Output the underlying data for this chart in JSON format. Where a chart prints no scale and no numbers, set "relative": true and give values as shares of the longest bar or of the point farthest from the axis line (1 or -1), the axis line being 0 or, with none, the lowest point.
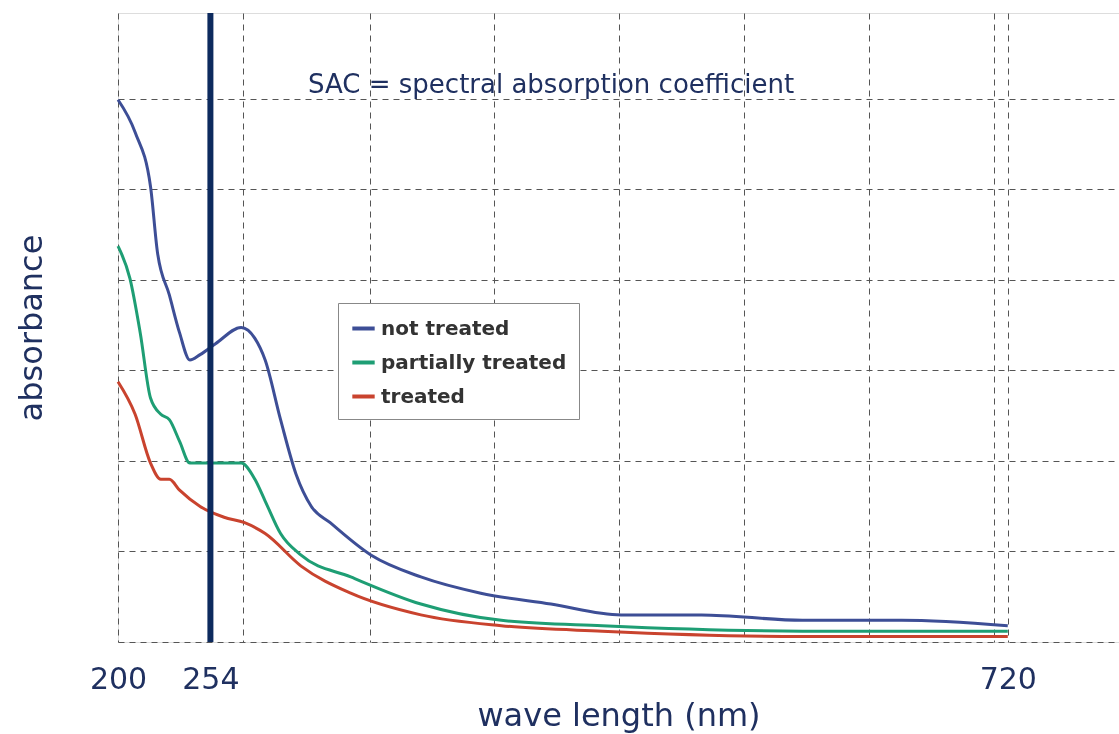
{
  "chart_data": {
    "type": "line",
    "xlabel": "wave length (nm)",
    "ylabel": "absorbance",
    "relative": true,
    "xlim": [
      200,
      785
    ],
    "xticks": [
      200,
      254,
      {
        "value": 273,
        "label": null
      },
      {
        "value": 347,
        "label": null
      },
      {
        "value": 420,
        "label": null
      },
      {
        "value": 493,
        "label": null
      },
      {
        "value": 566,
        "label": null
      },
      {
        "value": 639,
        "label": null
      },
      {
        "value": 712,
        "label": null
      },
      720
    ],
    "grid": true,
    "legend": "left",
    "marker": "none",
    "line_style": "solid",
    "ref_lines": [
      {
        "axis": "x",
        "value": 254,
        "color": "#0d2a5e"
      }
    ],
    "annotations": [
      "SAC = spectral absorption coefficient"
    ],
    "series": [
      {
        "name": "not treated",
        "color": "#3d4e96",
        "x": [
          200,
          210,
          219,
          223,
          230,
          236,
          242,
          248,
          257,
          272,
          280,
          286,
          295,
          304,
          313,
          324,
          348,
          377,
          412,
          453,
          494,
          541,
          600,
          658,
          720
        ],
        "values": [
          1.0,
          0.94,
          0.84,
          0.72,
          0.64,
          0.57,
          0.52,
          0.53,
          0.55,
          0.58,
          0.56,
          0.52,
          0.41,
          0.31,
          0.25,
          0.22,
          0.16,
          0.12,
          0.09,
          0.07,
          0.05,
          0.05,
          0.04,
          0.04,
          0.03
        ]
      },
      {
        "name": "partially treated",
        "color": "#1e9e74",
        "x": [
          200,
          207,
          213,
          219,
          225,
          230,
          236,
          242,
          248,
          272,
          280,
          286,
          295,
          307,
          336,
          377,
          424,
          483,
          600,
          720
        ],
        "values": [
          0.73,
          0.67,
          0.57,
          0.45,
          0.42,
          0.41,
          0.37,
          0.33,
          0.33,
          0.33,
          0.3,
          0.26,
          0.2,
          0.16,
          0.12,
          0.07,
          0.04,
          0.03,
          0.02,
          0.02
        ]
      },
      {
        "name": "treated",
        "color": "#c9432e",
        "x": [
          200,
          210,
          219,
          225,
          230,
          236,
          248,
          262,
          274,
          286,
          307,
          336,
          377,
          424,
          483,
          600,
          720
        ],
        "values": [
          0.48,
          0.42,
          0.33,
          0.3,
          0.3,
          0.28,
          0.25,
          0.23,
          0.22,
          0.2,
          0.14,
          0.09,
          0.05,
          0.03,
          0.02,
          0.01,
          0.01
        ]
      }
    ]
  }
}
